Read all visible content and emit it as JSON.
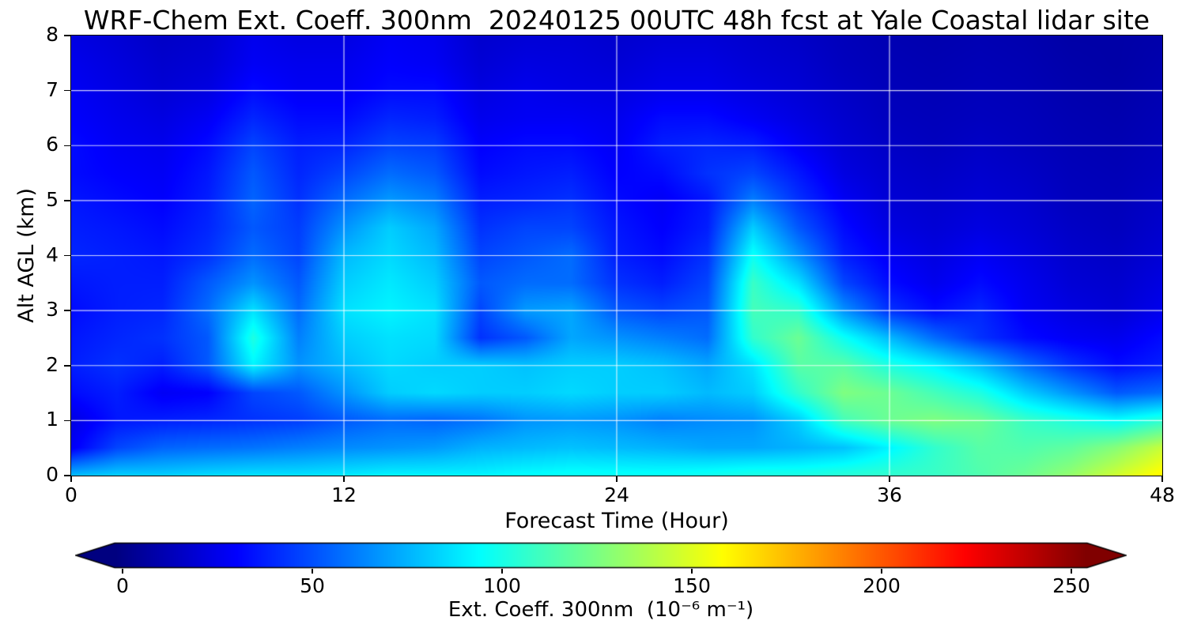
{
  "title": "WRF-Chem Ext. Coeff. 300nm  20240125 00UTC 48h fcst at Yale Coastal lidar site",
  "background_color": "#ffffff",
  "chart_data": {
    "type": "heatmap",
    "title": "WRF-Chem Ext. Coeff. 300nm  20240125 00UTC 48h fcst at Yale Coastal lidar site",
    "xlabel": "Forecast Time (Hour)",
    "ylabel": "Alt AGL (km)",
    "x_range": [
      0,
      48
    ],
    "y_range": [
      0,
      8
    ],
    "x_ticks": [
      0,
      12,
      24,
      36,
      48
    ],
    "y_ticks": [
      0,
      1,
      2,
      3,
      4,
      5,
      6,
      7,
      8
    ],
    "grid": true,
    "grid_color": "rgba(255,255,255,0.8)",
    "colormap": "jet",
    "vmin": 0,
    "vmax": 260,
    "x": [
      0,
      2,
      4,
      6,
      8,
      10,
      12,
      14,
      16,
      18,
      20,
      22,
      24,
      26,
      28,
      30,
      32,
      34,
      36,
      38,
      40,
      42,
      44,
      46,
      48
    ],
    "alt_km": [
      0,
      0.5,
      1,
      1.5,
      2,
      2.5,
      3,
      3.5,
      4,
      4.5,
      5,
      5.5,
      6,
      6.5,
      7,
      7.5,
      8
    ],
    "values": [
      [
        80,
        85,
        85,
        88,
        90,
        90,
        92,
        95,
        95,
        95,
        98,
        100,
        100,
        100,
        102,
        105,
        105,
        108,
        110,
        112,
        118,
        125,
        135,
        150,
        165
      ],
      [
        30,
        50,
        58,
        60,
        62,
        65,
        68,
        70,
        72,
        78,
        80,
        82,
        80,
        78,
        75,
        75,
        78,
        82,
        95,
        110,
        120,
        118,
        122,
        132,
        148
      ],
      [
        25,
        38,
        40,
        42,
        45,
        48,
        55,
        60,
        58,
        62,
        70,
        72,
        70,
        65,
        68,
        70,
        85,
        115,
        125,
        130,
        125,
        112,
        105,
        98,
        108
      ],
      [
        35,
        40,
        30,
        32,
        50,
        55,
        70,
        85,
        88,
        85,
        85,
        88,
        85,
        85,
        80,
        85,
        110,
        130,
        125,
        115,
        105,
        85,
        70,
        55,
        60
      ],
      [
        40,
        45,
        40,
        55,
        95,
        70,
        80,
        88,
        85,
        85,
        82,
        85,
        85,
        82,
        75,
        90,
        120,
        120,
        105,
        95,
        80,
        60,
        45,
        35,
        40
      ],
      [
        38,
        42,
        45,
        55,
        105,
        65,
        85,
        90,
        88,
        45,
        55,
        75,
        70,
        65,
        60,
        110,
        125,
        100,
        80,
        60,
        45,
        35,
        30,
        28,
        35
      ],
      [
        35,
        40,
        42,
        60,
        90,
        60,
        90,
        95,
        90,
        50,
        72,
        75,
        55,
        50,
        55,
        115,
        110,
        70,
        45,
        35,
        42,
        30,
        25,
        22,
        28
      ],
      [
        38,
        40,
        40,
        55,
        70,
        55,
        85,
        92,
        85,
        55,
        60,
        60,
        45,
        40,
        50,
        112,
        90,
        50,
        35,
        28,
        35,
        28,
        22,
        20,
        25
      ],
      [
        42,
        40,
        38,
        45,
        60,
        50,
        80,
        88,
        80,
        50,
        55,
        60,
        40,
        35,
        45,
        100,
        70,
        40,
        30,
        25,
        30,
        25,
        20,
        18,
        22
      ],
      [
        40,
        38,
        35,
        42,
        55,
        48,
        70,
        85,
        75,
        45,
        50,
        50,
        38,
        32,
        40,
        85,
        55,
        35,
        25,
        22,
        25,
        22,
        18,
        16,
        20
      ],
      [
        38,
        35,
        32,
        40,
        58,
        45,
        60,
        72,
        65,
        40,
        42,
        45,
        35,
        30,
        38,
        65,
        45,
        30,
        22,
        20,
        22,
        20,
        16,
        15,
        18
      ],
      [
        35,
        32,
        30,
        38,
        55,
        42,
        50,
        60,
        55,
        35,
        38,
        40,
        32,
        35,
        45,
        50,
        38,
        25,
        20,
        18,
        20,
        18,
        15,
        14,
        16
      ],
      [
        35,
        30,
        28,
        35,
        50,
        40,
        42,
        50,
        48,
        32,
        35,
        35,
        30,
        40,
        42,
        40,
        30,
        22,
        18,
        16,
        18,
        16,
        14,
        13,
        15
      ],
      [
        32,
        28,
        25,
        30,
        42,
        35,
        35,
        42,
        40,
        28,
        30,
        30,
        28,
        35,
        35,
        30,
        25,
        20,
        16,
        15,
        16,
        15,
        13,
        12,
        14
      ],
      [
        30,
        26,
        22,
        25,
        35,
        30,
        30,
        35,
        35,
        25,
        28,
        26,
        25,
        28,
        28,
        25,
        22,
        18,
        15,
        14,
        15,
        14,
        12,
        11,
        13
      ],
      [
        28,
        24,
        20,
        22,
        30,
        28,
        28,
        32,
        30,
        22,
        25,
        24,
        22,
        25,
        25,
        22,
        20,
        16,
        14,
        13,
        14,
        13,
        11,
        10,
        12
      ],
      [
        25,
        22,
        18,
        20,
        28,
        25,
        25,
        30,
        28,
        20,
        22,
        22,
        20,
        22,
        22,
        20,
        18,
        15,
        13,
        12,
        13,
        12,
        10,
        10,
        11
      ]
    ],
    "colorbar": {
      "label": "Ext. Coeff. 300nm  (10⁻⁶ m⁻¹)",
      "ticks": [
        0,
        50,
        100,
        150,
        200,
        250
      ],
      "extend": "both",
      "orientation": "horizontal"
    }
  }
}
